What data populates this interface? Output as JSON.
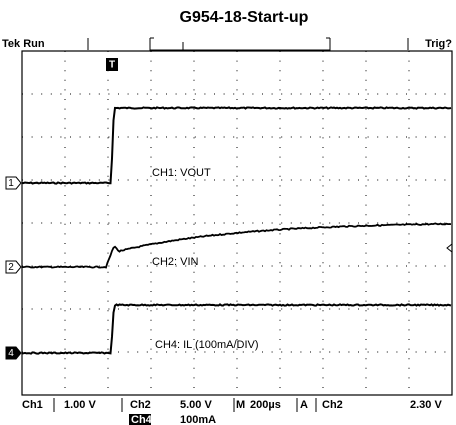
{
  "title": "G954-18-Start-up",
  "status": {
    "left": "Tek Run",
    "right": "Trig?"
  },
  "trigger_marker": "T",
  "traces": [
    {
      "marker": "1",
      "label": "CH1: VOUT"
    },
    {
      "marker": "2",
      "label": "CH2: VIN"
    },
    {
      "marker": "4",
      "label": "CH4: IL (100mA/DIV)"
    }
  ],
  "readout": {
    "ch1": "Ch1",
    "ch1_scale": "1.00 V",
    "ch2": "Ch2",
    "ch2_scale": "5.00 V",
    "time": "M",
    "time_scale": "200µs",
    "trig_mode": "A",
    "trig_source": "Ch2",
    "trig_level": "2.30 V",
    "ch4": "Ch4",
    "ch4_scale": "100mA"
  }
}
